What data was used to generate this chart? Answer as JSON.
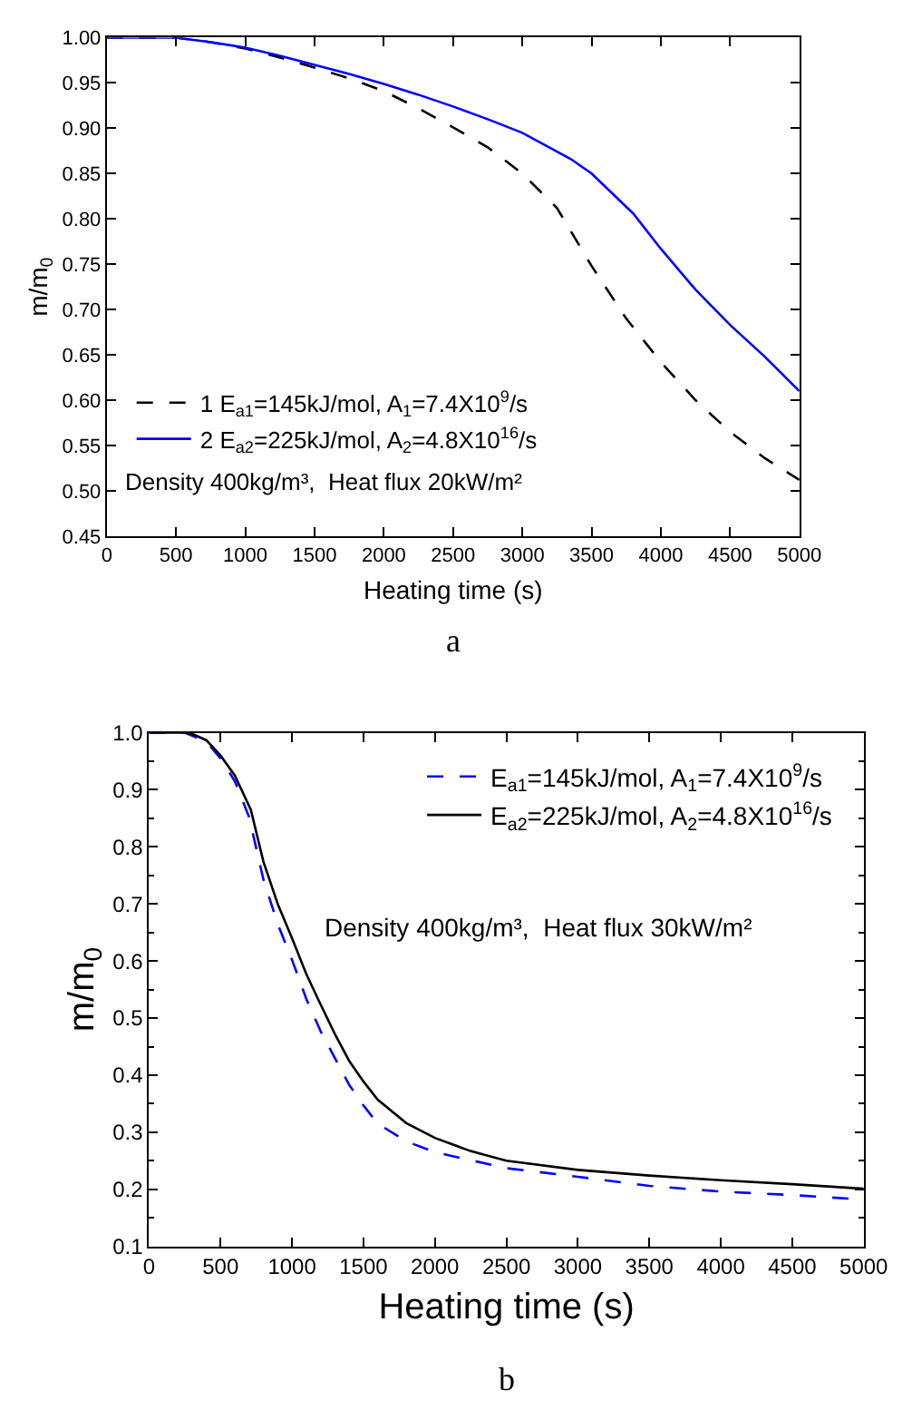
{
  "chart_data": [
    {
      "type": "line",
      "xlabel": "Heating time (s)",
      "ylabel": "m/m$_{0}$",
      "legend": "bottom left",
      "marker": "none",
      "xlim": [
        0,
        5000
      ],
      "xticks": [
        0,
        500,
        1000,
        1500,
        2000,
        2500,
        3000,
        3500,
        4000,
        4500,
        5000
      ],
      "ylim": [
        0.45,
        1.0
      ],
      "yticks": [
        {
          "value": 0.45,
          "label": "0.45"
        },
        {
          "value": 0.5,
          "label": "0.50"
        },
        {
          "value": 0.55,
          "label": "0.55"
        },
        {
          "value": 0.6,
          "label": "0.60"
        },
        {
          "value": 0.65,
          "label": "0.65"
        },
        {
          "value": 0.7,
          "label": "0.70"
        },
        {
          "value": 0.75,
          "label": "0.75"
        },
        {
          "value": 0.8,
          "label": "0.80"
        },
        {
          "value": 0.85,
          "label": "0.85"
        },
        {
          "value": 0.9,
          "label": "0.90"
        },
        {
          "value": 0.95,
          "label": "0.95"
        },
        {
          "value": 1.0,
          "label": "1.00"
        }
      ],
      "annotations": [
        "Density 400kg/m³,  Heat flux 20kW/m²",
        "a"
      ],
      "series": [
        {
          "name": "1 E$_{a1}$=145kJ/mol, A$_{1}$=7.4X10$^{9}$/s",
          "color": "#000000",
          "line_style": "dashed",
          "x": [
            0,
            250,
            500,
            750,
            1000,
            1250,
            1500,
            1750,
            2000,
            2250,
            2500,
            2750,
            3000,
            3250,
            3500,
            3750,
            4000,
            4250,
            4500,
            4750,
            5000
          ],
          "values": [
            1.0,
            1.0,
            1.0,
            0.995,
            0.988,
            0.978,
            0.967,
            0.955,
            0.941,
            0.922,
            0.901,
            0.879,
            0.85,
            0.812,
            0.748,
            0.69,
            0.642,
            0.6,
            0.565,
            0.536,
            0.512
          ]
        },
        {
          "name": "2 E$_{a2}$=225kJ/mol, A$_{2}$=4.8X10$^{16}$/s",
          "color": "#0000ff",
          "line_style": "solid",
          "x": [
            0,
            250,
            500,
            750,
            1000,
            1250,
            1500,
            1750,
            2000,
            2250,
            2500,
            2750,
            3000,
            3350,
            3500,
            3800,
            4000,
            4250,
            4500,
            4750,
            5000
          ],
          "values": [
            1.0,
            1.0,
            1.0,
            0.995,
            0.989,
            0.98,
            0.97,
            0.96,
            0.949,
            0.937,
            0.924,
            0.91,
            0.895,
            0.866,
            0.85,
            0.806,
            0.767,
            0.722,
            0.683,
            0.648,
            0.61
          ]
        }
      ]
    },
    {
      "type": "line",
      "xlabel": "Heating time (s)",
      "ylabel": "m/m$_{0}$",
      "legend": "top right",
      "marker": "none",
      "xlim": [
        0,
        5000
      ],
      "xticks": [
        0,
        500,
        1000,
        1500,
        2000,
        2500,
        3000,
        3500,
        4000,
        4500,
        5000
      ],
      "ylim": [
        0.1,
        1.0
      ],
      "yticks": [
        0.1,
        0.2,
        0.3,
        0.4,
        0.5,
        0.6,
        0.7,
        0.8,
        0.9,
        {
          "value": 1.0,
          "label": "1.0"
        }
      ],
      "annotations": [
        "Density 400kg/m³,  Heat flux 30kW/m²",
        "b"
      ],
      "series": [
        {
          "name": "E$_{a1}$=145kJ/mol, A$_{1}$=7.4X10$^{9}$/s",
          "color": "#0000ff",
          "line_style": "dashed",
          "x": [
            0,
            250,
            400,
            500,
            600,
            700,
            800,
            900,
            1000,
            1100,
            1200,
            1300,
            1400,
            1500,
            1600,
            1800,
            2000,
            2500,
            3000,
            3500,
            4000,
            4500,
            5000
          ],
          "values": [
            1.0,
            1.0,
            0.985,
            0.955,
            0.915,
            0.852,
            0.743,
            0.665,
            0.602,
            0.534,
            0.477,
            0.43,
            0.383,
            0.347,
            0.315,
            0.284,
            0.265,
            0.237,
            0.222,
            0.206,
            0.196,
            0.19,
            0.182
          ]
        },
        {
          "name": "E$_{a2}$=225kJ/mol, A$_{2}$=4.8X10$^{16}$/s",
          "color": "#000000",
          "line_style": "solid",
          "x": [
            0,
            250,
            300,
            400,
            500,
            600,
            712,
            800,
            900,
            1000,
            1100,
            1200,
            1300,
            1400,
            1500,
            1600,
            1800,
            2000,
            2250,
            2500,
            3000,
            3500,
            4000,
            4500,
            5000
          ],
          "values": [
            1.0,
            1.0,
            0.998,
            0.987,
            0.96,
            0.925,
            0.865,
            0.774,
            0.7,
            0.64,
            0.577,
            0.524,
            0.472,
            0.425,
            0.389,
            0.357,
            0.316,
            0.29,
            0.267,
            0.25,
            0.234,
            0.224,
            0.216,
            0.209,
            0.201
          ]
        }
      ]
    }
  ]
}
